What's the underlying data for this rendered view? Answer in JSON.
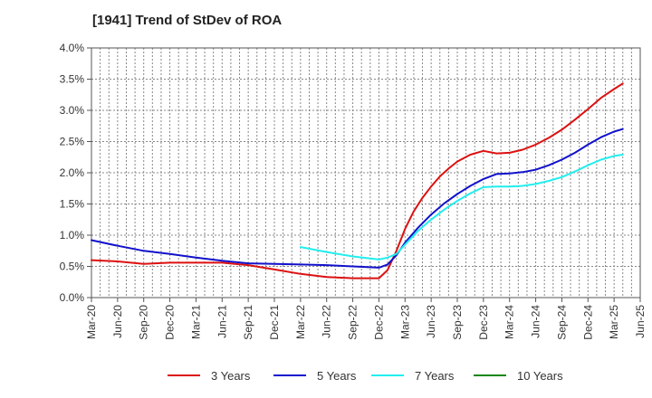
{
  "chart_data": {
    "type": "line",
    "title": "[1941]  Trend of StDev of ROA",
    "xlabel": "",
    "ylabel": "",
    "ylim": [
      0,
      4.0
    ],
    "yticks": [
      "0.0%",
      "0.5%",
      "1.0%",
      "1.5%",
      "2.0%",
      "2.5%",
      "3.0%",
      "3.5%",
      "4.0%"
    ],
    "xticks": [
      "Mar-20",
      "Jun-20",
      "Sep-20",
      "Dec-20",
      "Mar-21",
      "Jun-21",
      "Sep-21",
      "Dec-21",
      "Mar-22",
      "Jun-22",
      "Sep-22",
      "Dec-22",
      "Mar-23",
      "Jun-23",
      "Sep-23",
      "Dec-23",
      "Mar-24",
      "Jun-24",
      "Sep-24",
      "Dec-24",
      "Mar-25",
      "Jun-25"
    ],
    "grid": true,
    "legend_position": "bottom",
    "series": [
      {
        "name": "3 Years",
        "color": "#dd1111",
        "points": [
          [
            0,
            0.6
          ],
          [
            1,
            0.58
          ],
          [
            2,
            0.54
          ],
          [
            3,
            0.56
          ],
          [
            4,
            0.56
          ],
          [
            5,
            0.56
          ],
          [
            6,
            0.52
          ],
          [
            7,
            0.45
          ],
          [
            8,
            0.38
          ],
          [
            9,
            0.33
          ],
          [
            10,
            0.31
          ],
          [
            11,
            0.31
          ],
          [
            11.33,
            0.44
          ],
          [
            11.67,
            0.75
          ],
          [
            12,
            1.1
          ],
          [
            12.33,
            1.38
          ],
          [
            12.67,
            1.6
          ],
          [
            13,
            1.78
          ],
          [
            13.33,
            1.94
          ],
          [
            13.67,
            2.07
          ],
          [
            14,
            2.18
          ],
          [
            14.5,
            2.29
          ],
          [
            15,
            2.35
          ],
          [
            15.5,
            2.31
          ],
          [
            16,
            2.32
          ],
          [
            16.5,
            2.37
          ],
          [
            17,
            2.45
          ],
          [
            17.5,
            2.56
          ],
          [
            18,
            2.69
          ],
          [
            18.5,
            2.85
          ],
          [
            19,
            3.02
          ],
          [
            19.5,
            3.2
          ],
          [
            20,
            3.34
          ],
          [
            20.33,
            3.43
          ]
        ]
      },
      {
        "name": "5 Years",
        "color": "#1111cc",
        "points": [
          [
            0,
            0.92
          ],
          [
            1,
            0.83
          ],
          [
            2,
            0.75
          ],
          [
            3,
            0.7
          ],
          [
            4,
            0.64
          ],
          [
            5,
            0.59
          ],
          [
            6,
            0.55
          ],
          [
            7,
            0.54
          ],
          [
            8,
            0.53
          ],
          [
            9,
            0.52
          ],
          [
            10,
            0.5
          ],
          [
            11,
            0.48
          ],
          [
            11.33,
            0.53
          ],
          [
            11.67,
            0.68
          ],
          [
            12,
            0.88
          ],
          [
            12.5,
            1.12
          ],
          [
            13,
            1.33
          ],
          [
            13.5,
            1.51
          ],
          [
            14,
            1.66
          ],
          [
            14.5,
            1.79
          ],
          [
            15,
            1.9
          ],
          [
            15.5,
            1.98
          ],
          [
            16,
            1.99
          ],
          [
            16.5,
            2.01
          ],
          [
            17,
            2.05
          ],
          [
            17.5,
            2.12
          ],
          [
            18,
            2.21
          ],
          [
            18.5,
            2.32
          ],
          [
            19,
            2.45
          ],
          [
            19.5,
            2.57
          ],
          [
            20,
            2.66
          ],
          [
            20.33,
            2.7
          ]
        ]
      },
      {
        "name": "7 Years",
        "color": "#22eeee",
        "points": [
          [
            8,
            0.81
          ],
          [
            9,
            0.73
          ],
          [
            10,
            0.66
          ],
          [
            11,
            0.61
          ],
          [
            11.33,
            0.64
          ],
          [
            11.67,
            0.7
          ],
          [
            12,
            0.85
          ],
          [
            12.5,
            1.07
          ],
          [
            13,
            1.25
          ],
          [
            13.5,
            1.41
          ],
          [
            14,
            1.55
          ],
          [
            14.5,
            1.67
          ],
          [
            15,
            1.77
          ],
          [
            15.5,
            1.78
          ],
          [
            16,
            1.78
          ],
          [
            16.5,
            1.79
          ],
          [
            17,
            1.82
          ],
          [
            17.5,
            1.87
          ],
          [
            18,
            1.93
          ],
          [
            18.5,
            2.02
          ],
          [
            19,
            2.12
          ],
          [
            19.5,
            2.21
          ],
          [
            20,
            2.27
          ],
          [
            20.33,
            2.29
          ]
        ]
      },
      {
        "name": "10 Years",
        "color": "#118811",
        "points": []
      }
    ]
  }
}
